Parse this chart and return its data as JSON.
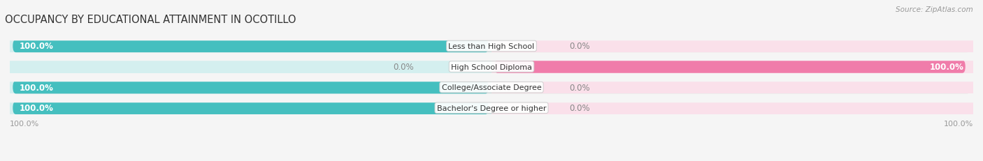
{
  "title": "OCCUPANCY BY EDUCATIONAL ATTAINMENT IN OCOTILLO",
  "source": "Source: ZipAtlas.com",
  "categories": [
    "Less than High School",
    "High School Diploma",
    "College/Associate Degree",
    "Bachelor's Degree or higher"
  ],
  "owner_values": [
    100.0,
    0.0,
    100.0,
    100.0
  ],
  "renter_values": [
    0.0,
    100.0,
    0.0,
    0.0
  ],
  "owner_color": "#45bfbf",
  "renter_color": "#f07caa",
  "owner_light_color": "#d4efef",
  "renter_light_color": "#fae0ea",
  "track_color": "#e8e8e8",
  "bar_height": 0.62,
  "background_color": "#f5f5f5",
  "title_fontsize": 10.5,
  "label_fontsize": 8.0,
  "value_fontsize": 8.5,
  "tick_fontsize": 8.0,
  "source_fontsize": 7.5
}
